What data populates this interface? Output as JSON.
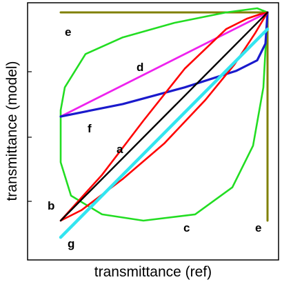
{
  "chart_data": {
    "type": "line",
    "xlabel": "transmittance (ref)",
    "ylabel": "transmittance (model)",
    "xlim": [
      0,
      1.08
    ],
    "ylim": [
      -0.15,
      1.05
    ],
    "grid": false,
    "series": [
      {
        "label": "a",
        "color": "#000000",
        "x": [
          0,
          1
        ],
        "y": [
          0,
          1
        ]
      },
      {
        "label": "b",
        "color": "#ff0000",
        "x": [
          0,
          0.2,
          0.4,
          0.6,
          0.8,
          0.9,
          0.96,
          1,
          0.94,
          0.84,
          0.7,
          0.5,
          0.3,
          0.1,
          0.01,
          0
        ],
        "y": [
          0,
          0.22,
          0.48,
          0.73,
          0.92,
          0.97,
          0.99,
          1,
          0.9,
          0.75,
          0.58,
          0.37,
          0.2,
          0.05,
          0.005,
          0
        ]
      },
      {
        "label": "c",
        "color": "#22dd22",
        "x": [
          0,
          0.0,
          0.05,
          0.2,
          0.4,
          0.65,
          0.83,
          0.93,
          0.98,
          1.0,
          0.95,
          0.8,
          0.55,
          0.3,
          0.12,
          0.02,
          0
        ],
        "y": [
          0.53,
          0.28,
          0.12,
          0.03,
          0.0,
          0.03,
          0.16,
          0.36,
          0.64,
          1.0,
          1.02,
          1.0,
          0.95,
          0.88,
          0.8,
          0.64,
          0.53
        ]
      },
      {
        "label": "d",
        "color": "#ee22ee",
        "x": [
          0,
          1
        ],
        "y": [
          0.5,
          1
        ]
      },
      {
        "label": "e",
        "color": "#808000",
        "x": [
          0,
          1,
          1
        ],
        "y": [
          1,
          1,
          0
        ]
      },
      {
        "label": "f",
        "color": "#1a1acc",
        "x": [
          0,
          0.3,
          0.6,
          0.85,
          0.95,
          0.99,
          1
        ],
        "y": [
          0.5,
          0.56,
          0.64,
          0.72,
          0.77,
          0.85,
          1
        ]
      },
      {
        "label": "g",
        "color": "#33e5f0",
        "x": [
          0,
          0.5,
          1
        ],
        "y": [
          -0.08,
          0.42,
          0.92
        ]
      }
    ],
    "annotations": [
      "a",
      "b",
      "c",
      "d",
      "e",
      "e",
      "f",
      "g"
    ]
  }
}
